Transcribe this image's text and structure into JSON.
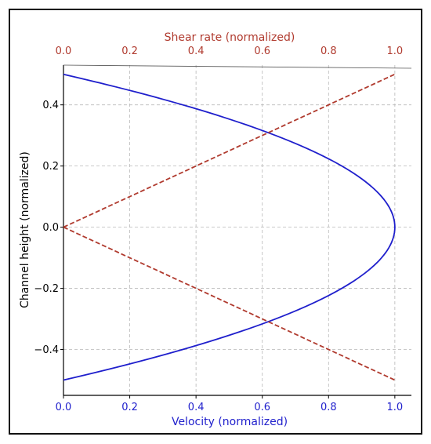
{
  "chart_data": {
    "type": "line",
    "title": "",
    "xlabel_bottom": "Velocity (normalized)",
    "xlabel_top": "Shear rate (normalized)",
    "ylabel": "Channel height (normalized)",
    "xlim": [
      0.0,
      1.05
    ],
    "ylim": [
      -0.55,
      0.53
    ],
    "grid": true,
    "legend": "none",
    "x_ticks": [
      0.0,
      0.2,
      0.4,
      0.6,
      0.8,
      1.0
    ],
    "x_tick_labels": [
      "0.0",
      "0.2",
      "0.4",
      "0.6",
      "0.8",
      "1.0"
    ],
    "y_ticks": [
      -0.4,
      -0.2,
      0.0,
      0.2,
      0.4
    ],
    "y_tick_labels": [
      "−0.4",
      "−0.2",
      "0.0",
      "0.2",
      "0.4"
    ],
    "series": [
      {
        "axis": "bottom",
        "style": "solid",
        "color": "#1f1fcc",
        "y": [
          -0.5,
          -0.4,
          -0.3,
          -0.2,
          -0.1,
          0.0,
          0.1,
          0.2,
          0.3,
          0.4,
          0.5
        ],
        "x": [
          0.0,
          0.36,
          0.64,
          0.84,
          0.96,
          1.0,
          0.96,
          0.84,
          0.64,
          0.36,
          0.0
        ]
      },
      {
        "axis": "top",
        "style": "dashed",
        "color": "#b03a2e",
        "y": [
          0.0,
          0.5
        ],
        "x": [
          0.0,
          1.0
        ]
      },
      {
        "axis": "top",
        "style": "dashed",
        "color": "#b03a2e",
        "y": [
          0.0,
          -0.5
        ],
        "x": [
          0.0,
          1.0
        ]
      }
    ],
    "colors": {
      "bottom_axis": "#1f1fcc",
      "top_axis": "#b03a2e",
      "left_axis": "#000000",
      "grid": "#b8b8b8"
    }
  }
}
